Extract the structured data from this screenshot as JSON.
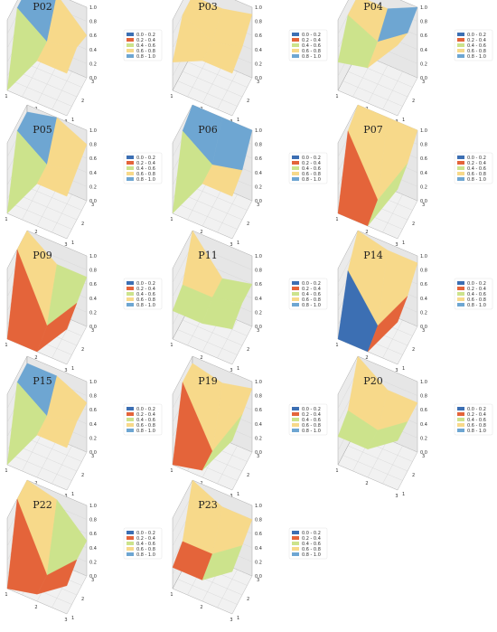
{
  "colors": {
    "pane_bg": "#f1f1f1",
    "grid": "#d4d4d4",
    "axis": "#9a9a9a",
    "ranges": [
      "#3c6fb3",
      "#e4643a",
      "#cce38c",
      "#f7d98a",
      "#6ea6d2"
    ]
  },
  "legend": {
    "entries": [
      "0.0 - 0.2",
      "0.2 - 0.4",
      "0.4 - 0.6",
      "0.6 - 0.8",
      "0.8 - 1.0"
    ]
  },
  "axes": {
    "x_ticks": [
      "1",
      "2",
      "3"
    ],
    "y_ticks": [
      "1",
      "2",
      "3"
    ],
    "z_ticks": [
      "0.0",
      "0.2",
      "0.4",
      "0.6",
      "0.8",
      "1.0"
    ]
  },
  "chart_data": [
    {
      "type": "surface3d",
      "title": "P02",
      "x": [
        1,
        2,
        3
      ],
      "y": [
        1,
        2,
        3
      ],
      "z": [
        [
          0.0,
          0.6,
          0.6
        ],
        [
          0.9,
          0.6,
          0.7
        ],
        [
          0.9,
          1.0,
          0.6
        ]
      ],
      "zlim": [
        0,
        1
      ],
      "grid": true,
      "legend": "right"
    },
    {
      "type": "surface3d",
      "title": "P03",
      "x": [
        1,
        2,
        3
      ],
      "y": [
        1,
        2,
        3
      ],
      "z": [
        [
          0.4,
          0.6,
          0.6
        ],
        [
          0.8,
          0.6,
          0.7
        ],
        [
          0.8,
          0.8,
          0.9
        ]
      ],
      "zlim": [
        0,
        1
      ],
      "grid": true,
      "legend": "right"
    },
    {
      "type": "surface3d",
      "title": "P04",
      "x": [
        1,
        2,
        3
      ],
      "y": [
        1,
        2,
        3
      ],
      "z": [
        [
          0.4,
          0.5,
          1.0
        ],
        [
          0.8,
          0.6,
          0.9
        ],
        [
          0.8,
          0.8,
          1.0
        ]
      ],
      "zlim": [
        0,
        1
      ],
      "grid": true,
      "legend": "right"
    },
    {
      "type": "surface3d",
      "title": "P05",
      "x": [
        1,
        2,
        3
      ],
      "y": [
        1,
        2,
        3
      ],
      "z": [
        [
          0.0,
          0.6,
          0.6
        ],
        [
          0.9,
          0.6,
          0.7
        ],
        [
          0.9,
          1.0,
          0.8
        ]
      ],
      "zlim": [
        0,
        1
      ],
      "grid": true,
      "legend": "right"
    },
    {
      "type": "surface3d",
      "title": "P06",
      "x": [
        1,
        2,
        3
      ],
      "y": [
        1,
        2,
        3
      ],
      "z": [
        [
          0.0,
          0.6,
          0.6
        ],
        [
          0.9,
          0.6,
          0.7
        ],
        [
          1.0,
          1.0,
          1.0
        ]
      ],
      "zlim": [
        0,
        1
      ],
      "grid": true,
      "legend": "right"
    },
    {
      "type": "surface3d",
      "title": "P07",
      "x": [
        1,
        2,
        3
      ],
      "y": [
        1,
        2,
        3
      ],
      "z": [
        [
          0.0,
          0.0,
          0.7
        ],
        [
          0.9,
          0.1,
          0.8
        ],
        [
          1.0,
          1.0,
          1.0
        ]
      ],
      "zlim": [
        0,
        1
      ],
      "grid": true,
      "legend": "right"
    },
    {
      "type": "surface3d",
      "title": "P09",
      "x": [
        1,
        2,
        3
      ],
      "y": [
        1,
        2,
        3
      ],
      "z": [
        [
          0.0,
          0.0,
          0.5
        ],
        [
          1.0,
          0.1,
          0.6
        ],
        [
          1.0,
          0.7,
          0.7
        ]
      ],
      "zlim": [
        0,
        1
      ],
      "grid": true,
      "legend": "right"
    },
    {
      "type": "surface3d",
      "title": "P11",
      "x": [
        1,
        2,
        3
      ],
      "y": [
        1,
        2,
        3
      ],
      "z": [
        [
          0.4,
          0.4,
          0.5
        ],
        [
          0.5,
          0.5,
          0.6
        ],
        [
          1.0,
          0.5,
          0.6
        ]
      ],
      "zlim": [
        0,
        1
      ],
      "grid": true,
      "legend": "right"
    },
    {
      "type": "surface3d",
      "title": "P14",
      "x": [
        1,
        2,
        3
      ],
      "y": [
        1,
        2,
        3
      ],
      "z": [
        [
          0.0,
          0.0,
          0.6
        ],
        [
          0.7,
          0.1,
          0.7
        ],
        [
          1.0,
          0.9,
          0.9
        ]
      ],
      "zlim": [
        0,
        1
      ],
      "grid": true,
      "legend": "right"
    },
    {
      "type": "surface3d",
      "title": "P15",
      "x": [
        1,
        2,
        3
      ],
      "y": [
        1,
        2,
        3
      ],
      "z": [
        [
          0.0,
          0.6,
          0.6
        ],
        [
          0.9,
          0.6,
          0.7
        ],
        [
          0.9,
          0.9,
          0.7
        ]
      ],
      "zlim": [
        0,
        1
      ],
      "grid": true,
      "legend": "right"
    },
    {
      "type": "surface3d",
      "title": "P19",
      "x": [
        1,
        2,
        3
      ],
      "y": [
        1,
        2,
        3
      ],
      "z": [
        [
          0.0,
          0.1,
          0.7
        ],
        [
          0.9,
          0.1,
          0.8
        ],
        [
          0.9,
          0.8,
          0.9
        ]
      ],
      "zlim": [
        0,
        1
      ],
      "grid": true,
      "legend": "right"
    },
    {
      "type": "surface3d",
      "title": "P20",
      "x": [
        1,
        2,
        3
      ],
      "y": [
        1,
        2,
        3
      ],
      "z": [
        [
          0.4,
          0.4,
          0.7
        ],
        [
          0.5,
          0.4,
          0.7
        ],
        [
          1.0,
          0.7,
          0.7
        ]
      ],
      "zlim": [
        0,
        1
      ],
      "grid": true,
      "legend": "right"
    },
    {
      "type": "surface3d",
      "title": "P22",
      "x": [
        1,
        2,
        3
      ],
      "y": [
        1,
        2,
        3
      ],
      "z": [
        [
          0.0,
          0.1,
          0.4
        ],
        [
          1.0,
          0.1,
          0.5
        ],
        [
          1.0,
          0.9,
          0.5
        ]
      ],
      "zlim": [
        0,
        1
      ],
      "grid": true,
      "legend": "right"
    },
    {
      "type": "surface3d",
      "title": "P23",
      "x": [
        1,
        2,
        3
      ],
      "y": [
        1,
        2,
        3
      ],
      "z": [
        [
          0.3,
          0.3,
          0.6
        ],
        [
          0.4,
          0.4,
          0.7
        ],
        [
          1.0,
          0.8,
          0.8
        ]
      ],
      "zlim": [
        0,
        1
      ],
      "grid": true,
      "legend": "right"
    }
  ]
}
